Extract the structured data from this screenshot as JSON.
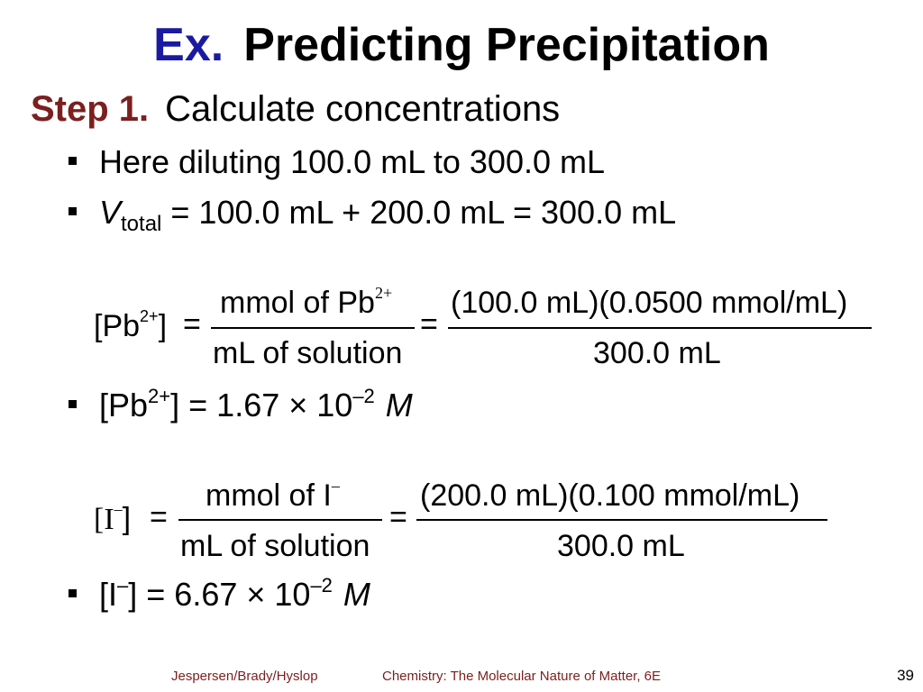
{
  "title": {
    "ex": "Ex.",
    "text": "Predicting Precipitation"
  },
  "step": {
    "label": "Step 1.",
    "text": "Calculate concentrations"
  },
  "bullets": {
    "b1": "Here diluting 100.0 mL to 300.0 mL",
    "b2_v": "V",
    "b2_sub": "total",
    "b2_rest": " = 100.0 mL + 200.0 mL = 300.0 mL",
    "b3_pre": "[Pb",
    "b3_sup": "2+",
    "b3_mid": "] = 1.67 × 10",
    "b3_exp": "–2",
    "b3_unit": "M",
    "b4_pre": "[I",
    "b4_sup": "–",
    "b4_mid": "] = 6.67 × 10",
    "b4_exp": "–2",
    "b4_unit": "M"
  },
  "eq1": {
    "lhs_pre": "[Pb",
    "lhs_sup": "2+",
    "lhs_post": "]",
    "equals": "=",
    "num1_text": "mmol of Pb",
    "num1_sup": "2+",
    "den1": "mL of solution",
    "equals2": "=",
    "num2": "(100.0 mL)(0.0500 mmol/mL)",
    "den2": "300.0 mL"
  },
  "eq2": {
    "lhs_pre": "[I",
    "lhs_sup": "–",
    "lhs_post": "]",
    "equals": "=",
    "num1_text": "mmol of I",
    "num1_sup": "–",
    "den1": "mL of solution",
    "equals2": "=",
    "num2": "(200.0 mL)(0.100 mmol/mL)",
    "den2": "300.0 mL"
  },
  "footer": {
    "authors": "Jespersen/Brady/Hyslop",
    "book": "Chemistry: The Molecular Nature of Matter, 6E",
    "page": "39"
  }
}
